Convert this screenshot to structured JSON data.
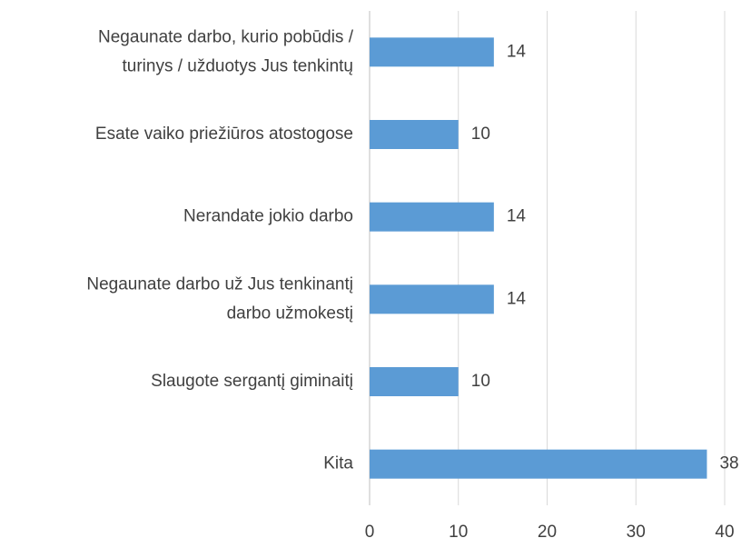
{
  "chart_data": {
    "type": "bar",
    "orientation": "horizontal",
    "categories": [
      [
        "Negaunate  darbo, kurio pobūdis /",
        "turinys / užduotys Jus tenkintų"
      ],
      [
        "Esate vaiko priežiūros atostogose"
      ],
      [
        "Nerandate jokio darbo"
      ],
      [
        "Negaunate darbo už Jus tenkinantį",
        "darbo užmokestį"
      ],
      [
        "Slaugote sergantį giminaitį"
      ],
      [
        "Kita"
      ]
    ],
    "values": [
      14,
      10,
      14,
      14,
      10,
      38
    ],
    "color": "#5b9bd5",
    "xlim": [
      0,
      40
    ],
    "xticks": [
      0,
      10,
      20,
      30,
      40
    ],
    "grid": true
  }
}
